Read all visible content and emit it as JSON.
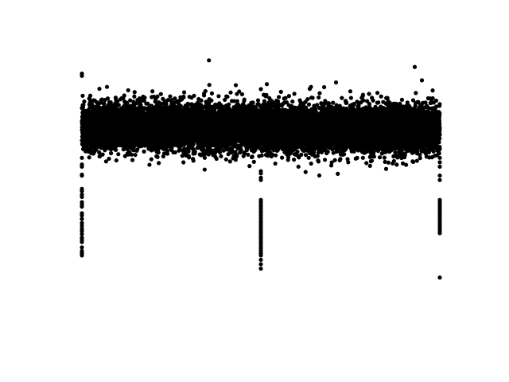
{
  "chart_data": {
    "type": "scatter",
    "title": "",
    "xlabel": "",
    "ylabel": "",
    "axes_visible": false,
    "grid": false,
    "legend": "none",
    "point_color": "#000000",
    "xlim": [
      0,
      2
    ],
    "ylim": [
      -4.5,
      1.55
    ],
    "dense_band": {
      "x_range": [
        0,
        2
      ],
      "y_center": 0.0,
      "y_spread": 0.25,
      "approx_points": 12000
    },
    "isolated_points": [
      {
        "x": 0.0,
        "y": 1.2
      },
      {
        "x": 0.0,
        "y": 1.15
      },
      {
        "x": 0.71,
        "y": 1.5
      },
      {
        "x": 1.86,
        "y": 1.35
      },
      {
        "x": 1.9,
        "y": 1.05
      },
      {
        "x": 1.42,
        "y": 1.0
      },
      {
        "x": 0.14,
        "y": 0.9
      },
      {
        "x": 1.0,
        "y": 0.85
      },
      {
        "x": 1.5,
        "y": 0.8
      },
      {
        "x": 1.96,
        "y": 0.82
      },
      {
        "x": 0.39,
        "y": 0.67
      },
      {
        "x": 1.28,
        "y": 0.9
      },
      {
        "x": 1.21,
        "y": -0.9
      },
      {
        "x": 1.25,
        "y": -1.02
      },
      {
        "x": 1.7,
        "y": -0.95
      },
      {
        "x": 1.61,
        "y": -0.88
      },
      {
        "x": 0.0,
        "y": -0.7
      }
    ],
    "vertical_outlier_columns": [
      {
        "x": 0.0,
        "y": [
          -0.85,
          -0.9,
          -1.08,
          -1.1,
          -1.4,
          -1.45,
          -1.53,
          -1.58,
          -1.7,
          -1.75,
          -1.8,
          -1.95,
          -2.0,
          -2.08,
          -2.17,
          -2.23,
          -2.3,
          -2.35,
          -2.42,
          -2.5,
          -2.55,
          -2.6,
          -2.72,
          -2.8,
          -2.85,
          -2.9
        ]
      },
      {
        "x": 1.0,
        "y": [
          -1.0,
          -1.05,
          -1.15,
          -1.2,
          -1.65,
          -1.7,
          -1.75,
          -1.8,
          -1.85,
          -1.9,
          -1.95,
          -2.0,
          -2.05,
          -2.1,
          -2.15,
          -2.2,
          -2.25,
          -2.3,
          -2.35,
          -2.4,
          -2.45,
          -2.5,
          -2.55,
          -2.6,
          -2.65,
          -2.7,
          -2.75,
          -2.8,
          -2.85,
          -2.9,
          -3.0,
          -3.1,
          -3.2
        ]
      },
      {
        "x": 2.0,
        "y": [
          -0.7,
          -0.8,
          -0.9,
          -1.1,
          -1.2,
          -1.65,
          -1.7,
          -1.75,
          -1.8,
          -1.85,
          -1.9,
          -1.95,
          -2.0,
          -2.05,
          -2.1,
          -2.15,
          -2.2,
          -2.25,
          -2.3,
          -2.35,
          -2.4,
          -3.4
        ]
      }
    ]
  }
}
